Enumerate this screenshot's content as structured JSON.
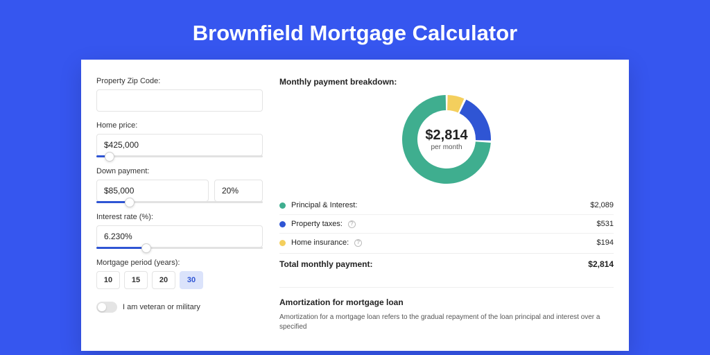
{
  "page_title": "Brownfield Mortgage Calculator",
  "colors": {
    "page_bg": "#3656ef",
    "accent": "#2f55d4",
    "green": "#3fae8f",
    "blue": "#2f55d4",
    "yellow": "#f4cf5d"
  },
  "form": {
    "zip_label": "Property Zip Code:",
    "zip_value": "",
    "price_label": "Home price:",
    "price_value": "$425,000",
    "price_slider_pct": 8,
    "down_label": "Down payment:",
    "down_amount": "$85,000",
    "down_pct": "20%",
    "down_slider_pct": 20,
    "rate_label": "Interest rate (%):",
    "rate_value": "6.230%",
    "rate_slider_pct": 30,
    "period_label": "Mortgage period (years):",
    "periods": [
      "10",
      "15",
      "20",
      "30"
    ],
    "period_active_index": 3,
    "veteran_label": "I am veteran or military"
  },
  "breakdown": {
    "title": "Monthly payment breakdown:",
    "donut": {
      "center_amount": "$2,814",
      "center_sub": "per month",
      "size": 128,
      "stroke": 22,
      "slices": [
        {
          "label": "Principal & Interest:",
          "value": "$2,089",
          "pct": 74.2,
          "color": "#3fae8f",
          "has_info": false
        },
        {
          "label": "Property taxes:",
          "value": "$531",
          "pct": 18.9,
          "color": "#2f55d4",
          "has_info": true
        },
        {
          "label": "Home insurance:",
          "value": "$194",
          "pct": 6.9,
          "color": "#f4cf5d",
          "has_info": true
        }
      ]
    },
    "total_label": "Total monthly payment:",
    "total_value": "$2,814"
  },
  "amortization": {
    "title": "Amortization for mortgage loan",
    "text": "Amortization for a mortgage loan refers to the gradual repayment of the loan principal and interest over a specified"
  }
}
